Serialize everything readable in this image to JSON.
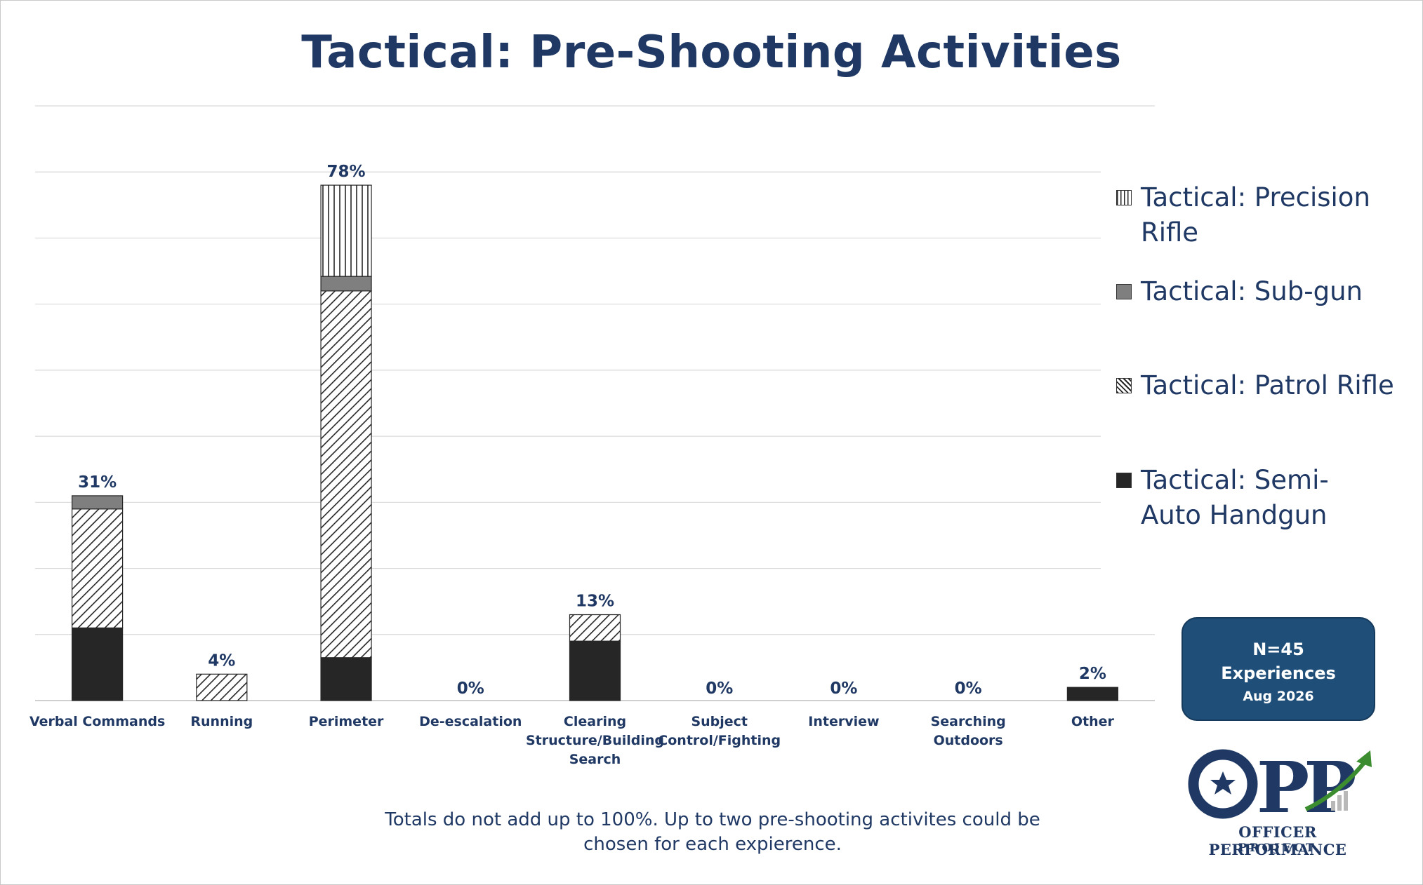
{
  "title": "Tactical: Pre-Shooting Activities",
  "chart_data": {
    "type": "bar",
    "stacked": true,
    "title": "Tactical: Pre-Shooting Activities",
    "categories": [
      "Verbal Commands",
      "Running",
      "Perimeter",
      "De-escalation",
      "Clearing Structure/Building Search",
      "Subject Control/Fighting",
      "Interview",
      "Searching Outdoors",
      "Other"
    ],
    "series": [
      {
        "name": "Tactical: Semi-Auto Handgun",
        "values": [
          11,
          0,
          6.5,
          0,
          9,
          0,
          0,
          0,
          2
        ],
        "color": "#262626",
        "pattern": "solid"
      },
      {
        "name": "Tactical: Patrol Rifle",
        "values": [
          18,
          4,
          55.5,
          0,
          4,
          0,
          0,
          0,
          0
        ],
        "color": "#ffffff",
        "pattern": "diagonal"
      },
      {
        "name": "Tactical: Sub-gun",
        "values": [
          2,
          0,
          2.2,
          0,
          0,
          0,
          0,
          0,
          0
        ],
        "color": "#7f7f7f",
        "pattern": "solid"
      },
      {
        "name": "Tactical: Precision Rifle",
        "values": [
          0,
          0,
          13.8,
          0,
          0,
          0,
          0,
          0,
          0
        ],
        "color": "#ffffff",
        "pattern": "vertical"
      }
    ],
    "totals_labels": [
      "31%",
      "4%",
      "78%",
      "0%",
      "13%",
      "0%",
      "0%",
      "0%",
      "2%"
    ],
    "ylim": [
      0,
      90
    ],
    "grid": true,
    "legend_position": "right"
  },
  "legend": [
    {
      "label": "Tactical: Precision Rifle",
      "pattern": "vertical"
    },
    {
      "label": "Tactical: Sub-gun",
      "pattern": "gray"
    },
    {
      "label": "Tactical: Patrol Rifle",
      "pattern": "diagonal"
    },
    {
      "label": "Tactical: Semi-Auto Handgun",
      "pattern": "black"
    }
  ],
  "info_box": {
    "count": "N=45",
    "label": "Experiences",
    "date": "Aug 2026"
  },
  "logo": {
    "letters": "OPP",
    "brand": "OFFICER PERFORMANCE",
    "sub": "PROJECT"
  },
  "footnote": "Totals do not add up to 100%. Up to two pre-shooting activites could be chosen for each expierence.",
  "colors": {
    "navy": "#1f3864",
    "box_blue": "#1f4e79",
    "bar_black": "#262626",
    "bar_gray": "#7f7f7f",
    "logo_arrow": "#3c8d2f"
  }
}
